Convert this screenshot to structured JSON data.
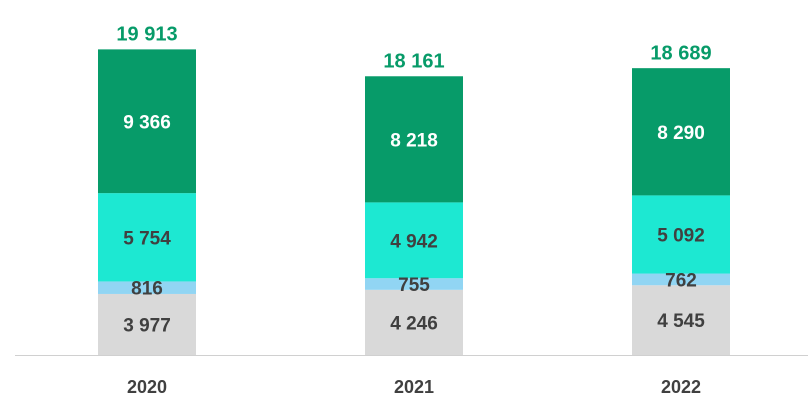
{
  "chart_data": {
    "type": "stacked_bar",
    "categories": [
      "2020",
      "2021",
      "2022"
    ],
    "series": [
      {
        "color": "#d9d9d9",
        "label_color": "#404040",
        "values": [
          3977,
          4246,
          4545
        ],
        "value_labels": [
          "3 977",
          "4 246",
          "4 545"
        ]
      },
      {
        "color": "#91d5f3",
        "label_color": "#404040",
        "values": [
          816,
          755,
          762
        ],
        "value_labels": [
          "816",
          "755",
          "762"
        ]
      },
      {
        "color": "#1de8d2",
        "label_color": "#404040",
        "values": [
          5754,
          4942,
          5092
        ],
        "value_labels": [
          "5 754",
          "4 942",
          "5 092"
        ]
      },
      {
        "color": "#079b69",
        "label_color": "#ffffff",
        "values": [
          9366,
          8218,
          8290
        ],
        "value_labels": [
          "9 366",
          "8 218",
          "8 290"
        ]
      }
    ],
    "totals": {
      "color": "#079b69",
      "values": [
        19913,
        18161,
        18689
      ],
      "value_labels": [
        "19 913",
        "18 161",
        "18 689"
      ]
    },
    "ylim": [
      0,
      23000
    ]
  }
}
